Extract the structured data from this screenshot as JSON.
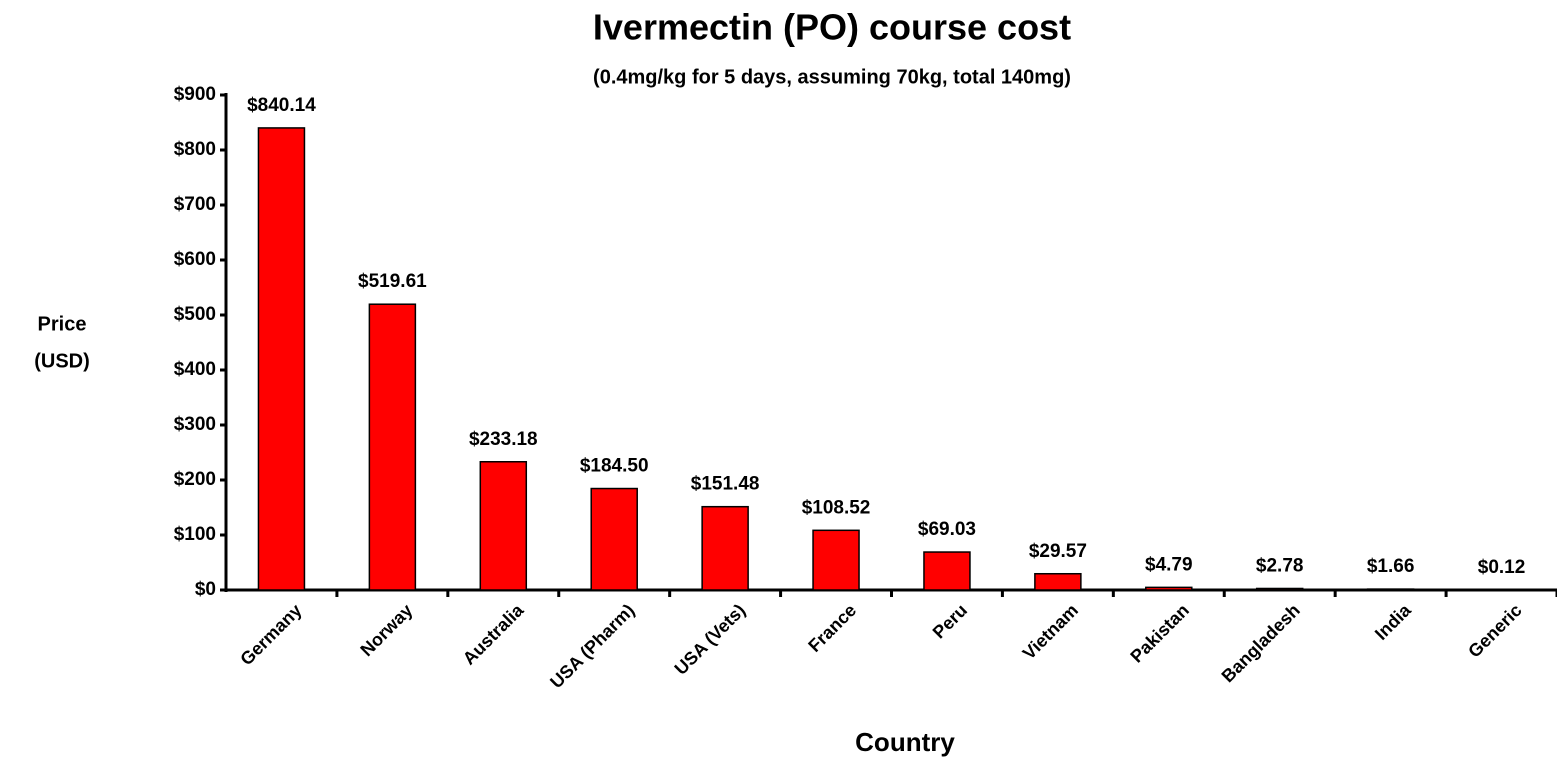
{
  "chart_data": {
    "type": "bar",
    "title": "Ivermectin (PO) course cost",
    "subtitle": "(0.4mg/kg for 5 days, assuming 70kg, total 140mg)",
    "xlabel": "Country",
    "ylabel_lines": [
      "Price",
      "(USD)"
    ],
    "categories": [
      "Germany",
      "Norway",
      "Australia",
      "USA (Pharm)",
      "USA (Vets)",
      "France",
      "Peru",
      "Vietnam",
      "Pakistan",
      "Bangladesh",
      "India",
      "Generic"
    ],
    "values": [
      840.14,
      519.61,
      233.18,
      184.5,
      151.48,
      108.52,
      69.03,
      29.57,
      4.79,
      2.78,
      1.66,
      0.12
    ],
    "value_labels": [
      "$840.14",
      "$519.61",
      "$233.18",
      "$184.50",
      "$151.48",
      "$108.52",
      "$69.03",
      "$29.57",
      "$4.79",
      "$2.78",
      "$1.66",
      "$0.12"
    ],
    "value_label_colors": [
      "#000000",
      "#000000",
      "#000000",
      "#000000",
      "#000000",
      "#000000",
      "#000000",
      "#000000",
      "#000000",
      "#000000",
      "#000000",
      "#ff7f00"
    ],
    "color": "#ff0000",
    "ylim": [
      0,
      900
    ],
    "yticks": [
      {
        "value": 0,
        "label": "$0"
      },
      {
        "value": 100,
        "label": "$100"
      },
      {
        "value": 200,
        "label": "$200"
      },
      {
        "value": 300,
        "label": "$300"
      },
      {
        "value": 400,
        "label": "$400"
      },
      {
        "value": 500,
        "label": "$500"
      },
      {
        "value": 600,
        "label": "$600"
      },
      {
        "value": 700,
        "label": "$700"
      },
      {
        "value": 800,
        "label": "$800"
      },
      {
        "value": 900,
        "label": "$900"
      }
    ],
    "grid": false
  }
}
